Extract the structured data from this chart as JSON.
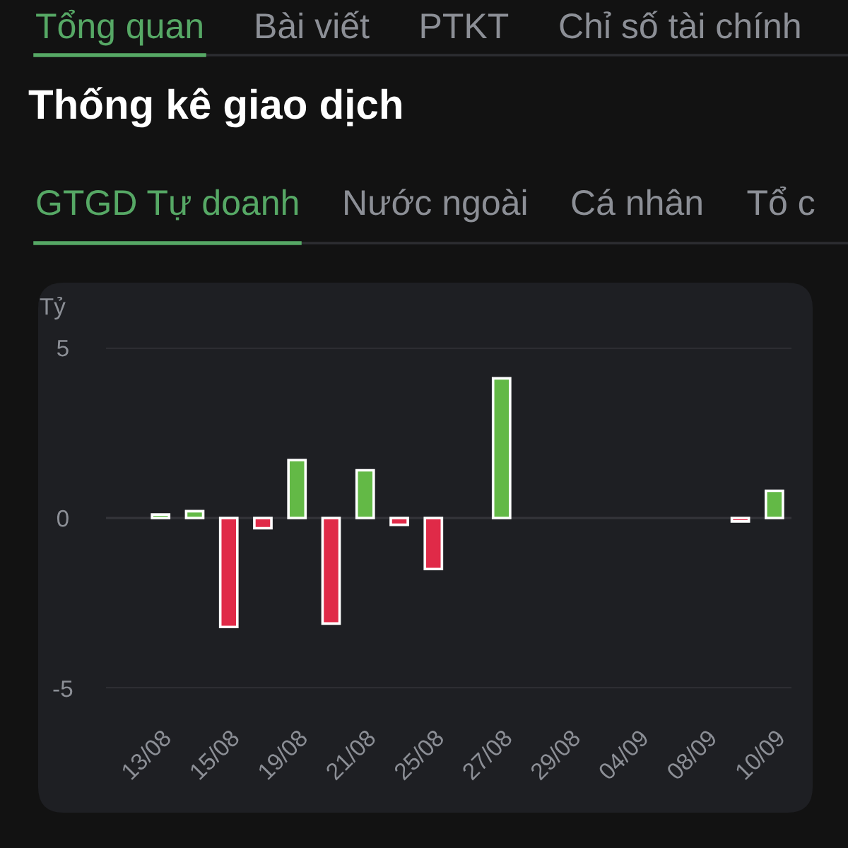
{
  "chart_data": {
    "type": "bar",
    "title": "Thống kê giao dịch",
    "subtitle": "GTGD Tự doanh",
    "ylabel": "Tỷ",
    "annotations": [
      "Tổng quan",
      "Bài viết",
      "PTKT",
      "Chỉ số tài chính",
      "Nước ngoài",
      "Cá nhân",
      "Tổ c"
    ],
    "categories": [
      "13/08",
      null,
      "15/08",
      null,
      "19/08",
      null,
      "21/08",
      null,
      "25/08",
      null,
      "27/08",
      null,
      "29/08",
      null,
      "04/09",
      null,
      "08/09",
      null,
      "10/09"
    ],
    "values": [
      0.1,
      0.2,
      -3.2,
      -0.3,
      1.7,
      -3.1,
      1.4,
      -0.2,
      -1.5,
      null,
      4.1,
      null,
      null,
      null,
      null,
      null,
      null,
      -0.1,
      0.8
    ],
    "colors": [
      "#63b946",
      "#63b946",
      "#e02a48",
      "#e02a48",
      "#63b946",
      "#e02a48",
      "#63b946",
      "#e02a48",
      "#e02a48",
      null,
      "#63b946",
      null,
      null,
      null,
      null,
      null,
      null,
      "#e02a48",
      "#63b946"
    ],
    "ylim": [
      -5,
      5
    ],
    "yticks": [
      -5,
      0,
      5
    ],
    "grid": "y"
  }
}
